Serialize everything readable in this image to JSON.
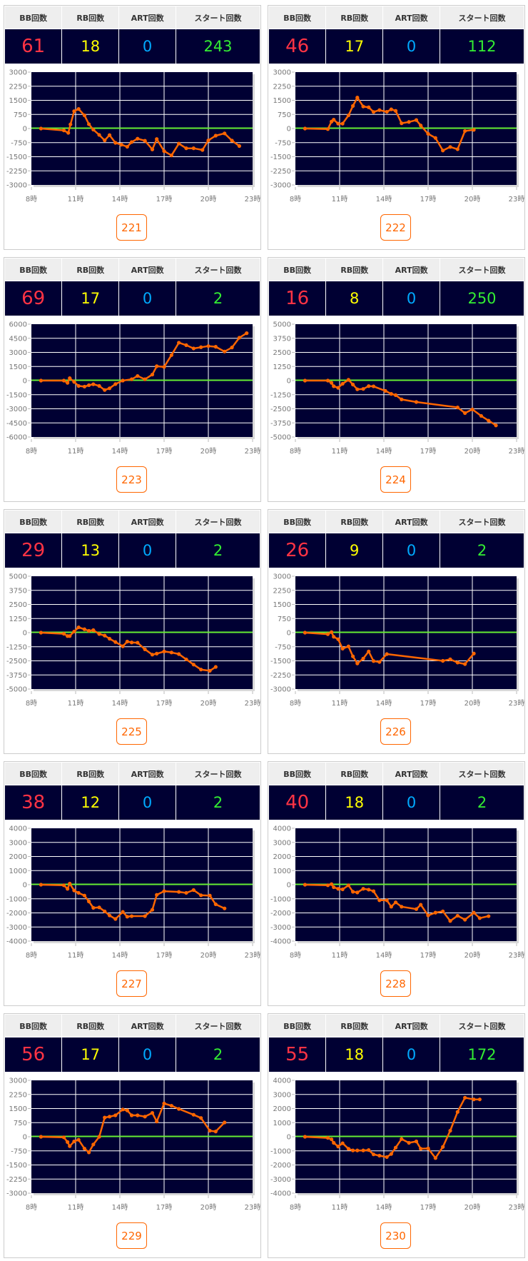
{
  "headers": {
    "bb": "BB回数",
    "rb": "RB回数",
    "art": "ART回数",
    "start": "スタート回数"
  },
  "colors": {
    "bb": "#ff3344",
    "rb": "#ffff00",
    "art": "#00aaff",
    "start": "#33ee33",
    "line": "#ff6600",
    "zero_line": "#66ee33",
    "plot_bg": "#000033"
  },
  "machines": [
    {
      "number": "221",
      "bb": "61",
      "rb": "18",
      "art": "0",
      "start": "243",
      "chart_data": {
        "type": "line",
        "ylim": [
          -3000,
          3000
        ],
        "yticks": [
          "3000",
          "2250",
          "1500",
          "750",
          "0",
          "-750",
          "-1500",
          "-2250",
          "-3000"
        ],
        "xlim": [
          8,
          23
        ],
        "xticks": [
          "8時",
          "11時",
          "14時",
          "17時",
          "20時",
          "23時"
        ],
        "x": [
          8.65,
          10.2,
          10.5,
          10.65,
          10.9,
          11.2,
          11.6,
          11.9,
          12.2,
          12.6,
          12.97,
          13.3,
          13.7,
          14.1,
          14.5,
          14.8,
          15.2,
          15.7,
          16.2,
          16.5,
          17.0,
          17.5,
          18.0,
          18.5,
          19.0,
          19.6,
          20.0,
          20.5,
          21.1,
          21.6,
          22.1
        ],
        "y": [
          0,
          -100,
          -230,
          220,
          920,
          1040,
          700,
          230,
          -60,
          -340,
          -630,
          -350,
          -760,
          -860,
          -970,
          -720,
          -540,
          -650,
          -1110,
          -560,
          -1200,
          -1430,
          -800,
          -1050,
          -1050,
          -1140,
          -630,
          -380,
          -260,
          -640,
          -930
        ]
      }
    },
    {
      "number": "222",
      "bb": "46",
      "rb": "17",
      "art": "0",
      "start": "112",
      "chart_data": {
        "type": "line",
        "ylim": [
          -3000,
          3000
        ],
        "yticks": [
          "3000",
          "2250",
          "1500",
          "750",
          "0",
          "-750",
          "-1500",
          "-2250",
          "-3000"
        ],
        "xlim": [
          8,
          23
        ],
        "xticks": [
          "8時",
          "11時",
          "14時",
          "17時",
          "20時",
          "23時"
        ],
        "x": [
          8.65,
          10.2,
          10.45,
          10.6,
          10.9,
          11.2,
          11.6,
          11.9,
          12.2,
          12.6,
          12.97,
          13.3,
          13.7,
          14.2,
          14.5,
          14.8,
          15.2,
          15.7,
          16.2,
          16.5,
          17.0,
          17.5,
          18.0,
          18.5,
          19.0,
          19.5,
          20.1
        ],
        "y": [
          0,
          -30,
          370,
          470,
          260,
          260,
          700,
          1200,
          1650,
          1170,
          1130,
          880,
          980,
          890,
          1020,
          940,
          280,
          350,
          450,
          160,
          -280,
          -500,
          -1170,
          -980,
          -1100,
          -130,
          -70
        ]
      }
    },
    {
      "number": "223",
      "bb": "69",
      "rb": "17",
      "art": "0",
      "start": "2",
      "chart_data": {
        "type": "line",
        "ylim": [
          -6000,
          6000
        ],
        "yticks": [
          "6000",
          "4500",
          "3000",
          "1500",
          "0",
          "-1500",
          "-3000",
          "-4500",
          "-6000"
        ],
        "xlim": [
          8,
          23
        ],
        "xticks": [
          "8時",
          "11時",
          "14時",
          "17時",
          "20時",
          "23時"
        ],
        "x": [
          8.65,
          10.2,
          10.45,
          10.6,
          10.9,
          11.2,
          11.6,
          11.9,
          12.2,
          12.6,
          12.97,
          13.3,
          13.7,
          14.2,
          14.8,
          15.2,
          15.7,
          16.2,
          16.5,
          17.0,
          17.5,
          18.0,
          18.5,
          19.0,
          19.5,
          20.0,
          20.5,
          21.1,
          21.6,
          22.1,
          22.6
        ],
        "y": [
          0,
          0,
          -240,
          260,
          -140,
          -570,
          -640,
          -490,
          -390,
          -570,
          -1000,
          -820,
          -370,
          0,
          140,
          490,
          140,
          640,
          1530,
          1450,
          2710,
          4030,
          3770,
          3420,
          3550,
          3670,
          3600,
          3090,
          3520,
          4560,
          5040
        ]
      }
    },
    {
      "number": "224",
      "bb": "16",
      "rb": "8",
      "art": "0",
      "start": "250",
      "chart_data": {
        "type": "line",
        "ylim": [
          -5000,
          5000
        ],
        "yticks": [
          "5000",
          "3750",
          "2500",
          "1250",
          "0",
          "-1250",
          "-2500",
          "-3750",
          "-5000"
        ],
        "xlim": [
          8,
          23
        ],
        "xticks": [
          "8時",
          "11時",
          "14時",
          "17時",
          "20時",
          "23時"
        ],
        "x": [
          8.65,
          10.2,
          10.45,
          10.6,
          10.9,
          11.2,
          11.6,
          11.9,
          12.2,
          12.6,
          12.97,
          13.3,
          14.1,
          14.5,
          14.8,
          15.2,
          16.2,
          19.0,
          19.5,
          20.0,
          20.6,
          21.1,
          21.6
        ],
        "y": [
          0,
          0,
          -200,
          -500,
          -640,
          -280,
          70,
          -350,
          -770,
          -740,
          -490,
          -510,
          -910,
          -1180,
          -1290,
          -1670,
          -1900,
          -2380,
          -2880,
          -2550,
          -3130,
          -3550,
          -3970
        ]
      }
    },
    {
      "number": "225",
      "bb": "29",
      "rb": "13",
      "art": "0",
      "start": "2",
      "chart_data": {
        "type": "line",
        "ylim": [
          -5000,
          5000
        ],
        "yticks": [
          "5000",
          "3750",
          "2500",
          "1250",
          "0",
          "-1250",
          "-2500",
          "-3750",
          "-5000"
        ],
        "xlim": [
          8,
          23
        ],
        "xticks": [
          "8時",
          "11時",
          "14時",
          "17時",
          "20時",
          "23時"
        ],
        "x": [
          8.65,
          10.2,
          10.45,
          10.6,
          10.9,
          11.2,
          11.6,
          11.9,
          12.2,
          12.6,
          12.97,
          13.3,
          13.7,
          14.2,
          14.5,
          14.8,
          15.2,
          15.7,
          16.2,
          16.5,
          17.0,
          17.5,
          18.0,
          18.5,
          19.0,
          19.5,
          20.1,
          20.5
        ],
        "y": [
          0,
          -100,
          -300,
          -300,
          100,
          470,
          300,
          160,
          220,
          -120,
          -260,
          -540,
          -830,
          -1210,
          -790,
          -870,
          -890,
          -1480,
          -1950,
          -1860,
          -1670,
          -1760,
          -1900,
          -2370,
          -2830,
          -3270,
          -3380,
          -3040
        ]
      }
    },
    {
      "number": "226",
      "bb": "26",
      "rb": "9",
      "art": "0",
      "start": "2",
      "chart_data": {
        "type": "line",
        "ylim": [
          -3000,
          3000
        ],
        "yticks": [
          "3000",
          "2250",
          "1500",
          "750",
          "0",
          "-750",
          "-1500",
          "-2250",
          "-3000"
        ],
        "xlim": [
          8,
          23
        ],
        "xticks": [
          "8時",
          "11時",
          "14時",
          "17時",
          "20時",
          "23時"
        ],
        "x": [
          8.65,
          10.2,
          10.45,
          10.6,
          10.9,
          11.2,
          11.6,
          11.9,
          12.2,
          12.6,
          12.97,
          13.3,
          13.7,
          14.2,
          18.0,
          18.5,
          19.0,
          19.5,
          20.1
        ],
        "y": [
          0,
          -80,
          30,
          -220,
          -350,
          -850,
          -730,
          -1260,
          -1640,
          -1380,
          -1000,
          -1510,
          -1560,
          -1140,
          -1500,
          -1420,
          -1590,
          -1670,
          -1110
        ]
      }
    },
    {
      "number": "227",
      "bb": "38",
      "rb": "12",
      "art": "0",
      "start": "2",
      "chart_data": {
        "type": "line",
        "ylim": [
          -4000,
          4000
        ],
        "yticks": [
          "4000",
          "3000",
          "2000",
          "1000",
          "0",
          "-1000",
          "-2000",
          "-3000",
          "-4000"
        ],
        "xlim": [
          8,
          23
        ],
        "xticks": [
          "8時",
          "11時",
          "14時",
          "17時",
          "20時",
          "23時"
        ],
        "x": [
          8.65,
          10.2,
          10.45,
          10.6,
          10.9,
          11.2,
          11.6,
          11.9,
          12.2,
          12.6,
          12.97,
          13.3,
          13.7,
          14.2,
          14.5,
          14.8,
          15.7,
          16.2,
          16.5,
          17.0,
          18.0,
          18.5,
          19.0,
          19.5,
          20.1,
          20.5,
          21.1
        ],
        "y": [
          0,
          -40,
          -290,
          80,
          -410,
          -580,
          -770,
          -1190,
          -1640,
          -1610,
          -1890,
          -2180,
          -2430,
          -1930,
          -2270,
          -2230,
          -2230,
          -1780,
          -720,
          -460,
          -510,
          -580,
          -380,
          -750,
          -770,
          -1390,
          -1680
        ]
      }
    },
    {
      "number": "228",
      "bb": "40",
      "rb": "18",
      "art": "0",
      "start": "2",
      "chart_data": {
        "type": "line",
        "ylim": [
          -4000,
          4000
        ],
        "yticks": [
          "4000",
          "3000",
          "2000",
          "1000",
          "0",
          "-1000",
          "-2000",
          "-3000",
          "-4000"
        ],
        "xlim": [
          8,
          23
        ],
        "xticks": [
          "8時",
          "11時",
          "14時",
          "17時",
          "20時",
          "23時"
        ],
        "x": [
          8.65,
          10.2,
          10.45,
          10.6,
          10.9,
          11.2,
          11.6,
          11.9,
          12.2,
          12.6,
          12.97,
          13.3,
          13.7,
          14.2,
          14.5,
          14.8,
          15.2,
          16.2,
          16.5,
          17.0,
          17.5,
          18.0,
          18.5,
          19.0,
          19.5,
          20.1,
          20.5,
          21.1
        ],
        "y": [
          0,
          -40,
          40,
          -180,
          -290,
          -330,
          -40,
          -500,
          -550,
          -290,
          -350,
          -460,
          -1100,
          -1100,
          -1560,
          -1250,
          -1560,
          -1730,
          -1420,
          -2180,
          -1980,
          -1890,
          -2570,
          -2200,
          -2480,
          -1980,
          -2370,
          -2230
        ]
      }
    },
    {
      "number": "229",
      "bb": "56",
      "rb": "17",
      "art": "0",
      "start": "2",
      "chart_data": {
        "type": "line",
        "ylim": [
          -3000,
          3000
        ],
        "yticks": [
          "3000",
          "2250",
          "1500",
          "750",
          "0",
          "-750",
          "-1500",
          "-2250",
          "-3000"
        ],
        "xlim": [
          8,
          23
        ],
        "xticks": [
          "8時",
          "11時",
          "14時",
          "17時",
          "20時",
          "23時"
        ],
        "x": [
          8.65,
          10.2,
          10.45,
          10.6,
          10.9,
          11.2,
          11.6,
          11.9,
          12.2,
          12.6,
          12.97,
          13.3,
          13.7,
          14.2,
          14.5,
          14.8,
          15.2,
          15.7,
          16.2,
          16.5,
          17.0,
          17.5,
          18.0,
          19.0,
          19.5,
          20.1,
          20.5,
          21.1
        ],
        "y": [
          0,
          -30,
          -280,
          -500,
          -250,
          -160,
          -630,
          -830,
          -410,
          0,
          1020,
          1070,
          1140,
          1450,
          1400,
          1140,
          1140,
          1070,
          1270,
          810,
          1770,
          1650,
          1480,
          1170,
          1000,
          320,
          280,
          760
        ]
      }
    },
    {
      "number": "230",
      "bb": "55",
      "rb": "18",
      "art": "0",
      "start": "172",
      "chart_data": {
        "type": "line",
        "ylim": [
          -4000,
          4000
        ],
        "yticks": [
          "4000",
          "3000",
          "2000",
          "1000",
          "0",
          "-1000",
          "-2000",
          "-3000",
          "-4000"
        ],
        "xlim": [
          8,
          23
        ],
        "xticks": [
          "8時",
          "11時",
          "14時",
          "17時",
          "20時",
          "23時"
        ],
        "x": [
          8.65,
          10.2,
          10.45,
          10.6,
          10.9,
          11.2,
          11.6,
          11.9,
          12.2,
          12.6,
          12.97,
          13.3,
          13.7,
          14.2,
          14.5,
          14.8,
          15.2,
          15.7,
          16.2,
          16.5,
          17.0,
          17.5,
          18.0,
          18.5,
          19.0,
          19.5,
          20.1,
          20.5
        ],
        "y": [
          0,
          -80,
          -180,
          -430,
          -690,
          -460,
          -850,
          -970,
          -970,
          -970,
          -940,
          -1250,
          -1340,
          -1440,
          -1220,
          -770,
          -160,
          -430,
          -330,
          -850,
          -830,
          -1510,
          -720,
          430,
          1760,
          2770,
          2650,
          2650
        ]
      }
    }
  ]
}
